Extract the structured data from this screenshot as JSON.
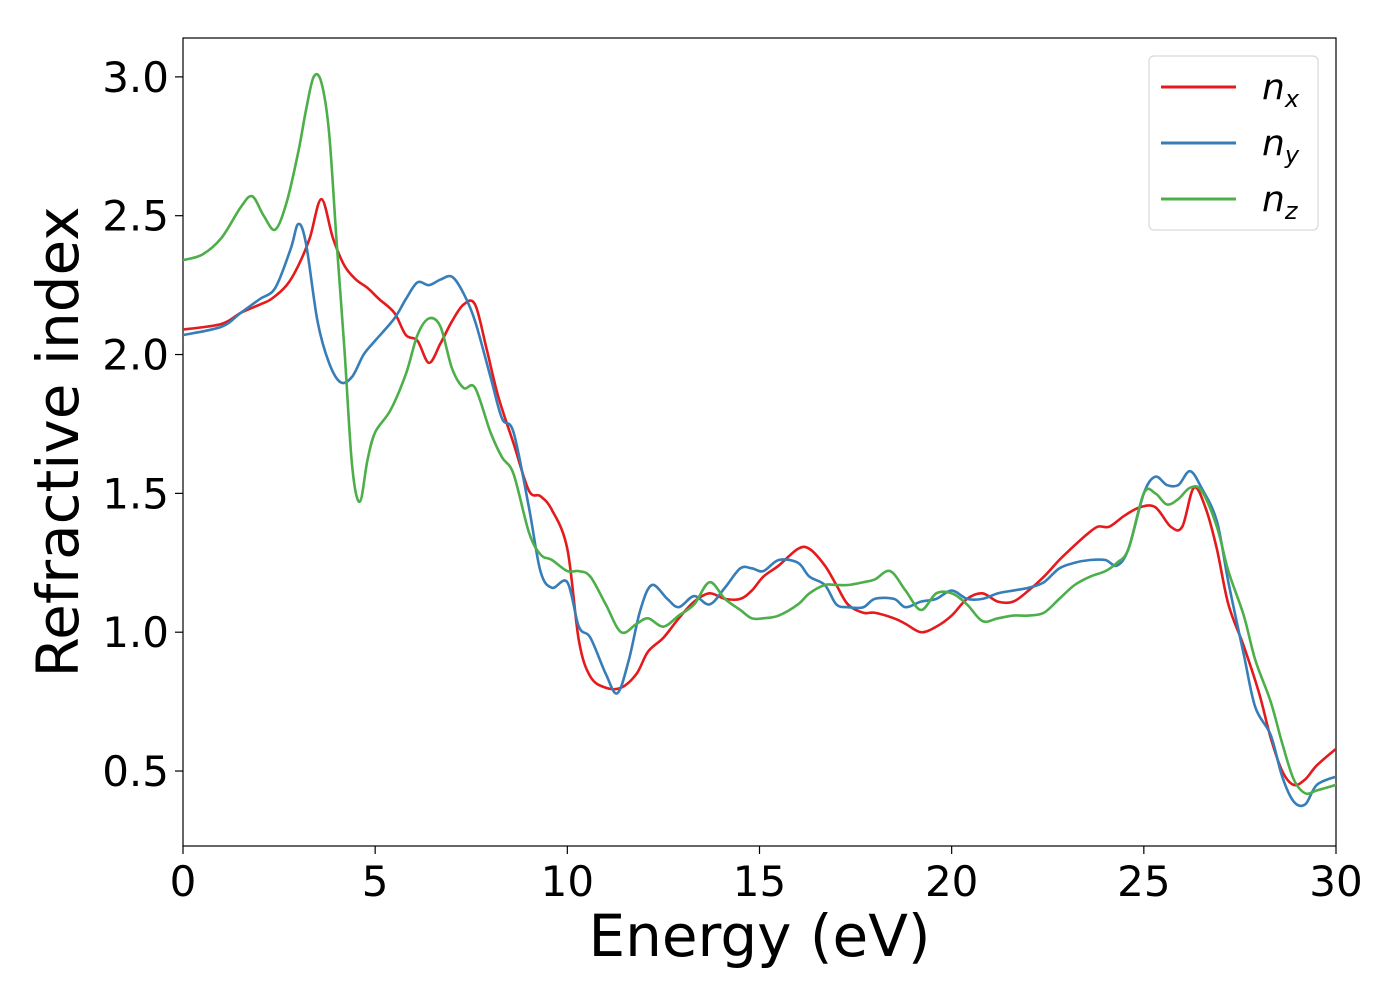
{
  "chart_data": {
    "type": "line",
    "xlabel": "Energy (eV)",
    "ylabel": "Refractive index",
    "xlim": [
      0,
      30
    ],
    "ylim": [
      0.23,
      3.14
    ],
    "xticks": [
      0,
      5,
      10,
      15,
      20,
      25,
      30
    ],
    "yticks": [
      0.5,
      1.0,
      1.5,
      2.0,
      2.5,
      3.0
    ],
    "grid": false,
    "legend_position": "top-right",
    "series": [
      {
        "name": "n",
        "subscript": "x",
        "color": "#e41a1c",
        "x": [
          0,
          1,
          1.5,
          2,
          2.3,
          2.7,
          3.0,
          3.3,
          3.6,
          3.9,
          4.2,
          4.5,
          4.8,
          5.1,
          5.5,
          5.8,
          6.1,
          6.4,
          6.7,
          7.0,
          7.3,
          7.6,
          7.9,
          8.2,
          8.6,
          9.0,
          9.3,
          9.6,
          10.0,
          10.3,
          10.6,
          11.0,
          11.4,
          11.8,
          12.1,
          12.5,
          12.9,
          13.3,
          13.7,
          14.1,
          14.5,
          14.8,
          15.1,
          15.5,
          16.0,
          16.3,
          16.7,
          17.0,
          17.3,
          17.7,
          18.0,
          18.5,
          18.8,
          19.2,
          19.6,
          20.0,
          20.4,
          20.8,
          21.2,
          21.6,
          22.0,
          22.4,
          22.8,
          23.1,
          23.5,
          23.8,
          24.1,
          24.5,
          24.9,
          25.3,
          25.7,
          26.0,
          26.3,
          26.6,
          26.9,
          27.2,
          27.6,
          28.0,
          28.3,
          28.6,
          28.9,
          29.2,
          29.5,
          30.0
        ],
        "y": [
          2.09,
          2.11,
          2.15,
          2.18,
          2.2,
          2.25,
          2.32,
          2.42,
          2.56,
          2.42,
          2.32,
          2.27,
          2.24,
          2.2,
          2.15,
          2.07,
          2.05,
          1.97,
          2.04,
          2.12,
          2.18,
          2.18,
          2.02,
          1.85,
          1.68,
          1.51,
          1.49,
          1.44,
          1.3,
          0.97,
          0.84,
          0.8,
          0.8,
          0.85,
          0.93,
          0.98,
          1.05,
          1.11,
          1.14,
          1.12,
          1.12,
          1.15,
          1.2,
          1.24,
          1.3,
          1.3,
          1.24,
          1.17,
          1.1,
          1.07,
          1.07,
          1.05,
          1.03,
          1.0,
          1.02,
          1.06,
          1.12,
          1.14,
          1.11,
          1.11,
          1.15,
          1.2,
          1.26,
          1.3,
          1.35,
          1.38,
          1.38,
          1.42,
          1.45,
          1.45,
          1.38,
          1.38,
          1.52,
          1.45,
          1.3,
          1.1,
          0.95,
          0.78,
          0.62,
          0.5,
          0.45,
          0.47,
          0.52,
          0.58
        ]
      },
      {
        "name": "n",
        "subscript": "y",
        "color": "#377eb8",
        "x": [
          0,
          1,
          1.5,
          2,
          2.4,
          2.8,
          3.0,
          3.2,
          3.5,
          3.8,
          4.1,
          4.4,
          4.7,
          5.0,
          5.5,
          5.8,
          6.1,
          6.4,
          6.7,
          7.0,
          7.3,
          7.6,
          8.0,
          8.3,
          8.6,
          9.0,
          9.3,
          9.6,
          10.0,
          10.3,
          10.6,
          11.0,
          11.3,
          11.6,
          11.9,
          12.2,
          12.6,
          12.9,
          13.3,
          13.7,
          14.1,
          14.5,
          14.8,
          15.1,
          15.5,
          16.0,
          16.3,
          16.7,
          17.0,
          17.3,
          17.7,
          18.0,
          18.5,
          18.8,
          19.2,
          19.6,
          20.0,
          20.4,
          20.8,
          21.2,
          21.6,
          22.0,
          22.4,
          22.8,
          23.2,
          23.6,
          24.0,
          24.3,
          24.6,
          25.0,
          25.3,
          25.6,
          25.9,
          26.2,
          26.5,
          26.9,
          27.2,
          27.6,
          27.9,
          28.3,
          28.6,
          28.9,
          29.2,
          29.5,
          30.0
        ],
        "y": [
          2.07,
          2.1,
          2.15,
          2.2,
          2.24,
          2.38,
          2.47,
          2.4,
          2.12,
          1.97,
          1.9,
          1.92,
          2.0,
          2.05,
          2.13,
          2.2,
          2.26,
          2.25,
          2.27,
          2.28,
          2.22,
          2.12,
          1.92,
          1.77,
          1.72,
          1.45,
          1.22,
          1.16,
          1.18,
          1.02,
          0.98,
          0.85,
          0.78,
          0.9,
          1.08,
          1.17,
          1.12,
          1.09,
          1.13,
          1.1,
          1.16,
          1.23,
          1.23,
          1.22,
          1.26,
          1.25,
          1.2,
          1.17,
          1.1,
          1.09,
          1.09,
          1.12,
          1.12,
          1.09,
          1.11,
          1.12,
          1.15,
          1.12,
          1.12,
          1.14,
          1.15,
          1.16,
          1.18,
          1.23,
          1.25,
          1.26,
          1.26,
          1.24,
          1.3,
          1.5,
          1.56,
          1.53,
          1.53,
          1.58,
          1.52,
          1.4,
          1.18,
          0.92,
          0.73,
          0.63,
          0.48,
          0.39,
          0.38,
          0.45,
          0.48
        ]
      },
      {
        "name": "n",
        "subscript": "z",
        "color": "#4daf4a",
        "x": [
          0,
          0.5,
          1.0,
          1.5,
          1.8,
          2.1,
          2.4,
          2.7,
          3.0,
          3.2,
          3.4,
          3.6,
          3.8,
          4.0,
          4.2,
          4.4,
          4.6,
          4.8,
          5.0,
          5.4,
          5.8,
          6.1,
          6.4,
          6.7,
          7.0,
          7.3,
          7.6,
          8.0,
          8.3,
          8.6,
          9.0,
          9.3,
          9.6,
          10.0,
          10.3,
          10.6,
          11.0,
          11.4,
          11.8,
          12.1,
          12.5,
          12.9,
          13.3,
          13.7,
          14.1,
          14.5,
          14.8,
          15.1,
          15.5,
          16.0,
          16.3,
          16.7,
          17.0,
          17.3,
          17.7,
          18.0,
          18.4,
          18.8,
          19.2,
          19.6,
          20.0,
          20.4,
          20.8,
          21.2,
          21.6,
          22.0,
          22.4,
          22.8,
          23.2,
          23.6,
          24.0,
          24.3,
          24.6,
          25.0,
          25.3,
          25.6,
          25.9,
          26.2,
          26.5,
          26.9,
          27.2,
          27.6,
          27.9,
          28.3,
          28.6,
          28.9,
          29.2,
          29.5,
          30.0
        ],
        "y": [
          2.34,
          2.36,
          2.42,
          2.53,
          2.57,
          2.5,
          2.45,
          2.55,
          2.73,
          2.88,
          3.0,
          2.98,
          2.8,
          2.4,
          2.02,
          1.6,
          1.47,
          1.62,
          1.72,
          1.8,
          1.93,
          2.07,
          2.13,
          2.1,
          1.95,
          1.88,
          1.88,
          1.72,
          1.63,
          1.57,
          1.36,
          1.28,
          1.26,
          1.22,
          1.22,
          1.2,
          1.1,
          1.0,
          1.03,
          1.05,
          1.02,
          1.06,
          1.1,
          1.18,
          1.12,
          1.08,
          1.05,
          1.05,
          1.06,
          1.1,
          1.14,
          1.17,
          1.17,
          1.17,
          1.18,
          1.19,
          1.22,
          1.15,
          1.08,
          1.14,
          1.14,
          1.1,
          1.04,
          1.05,
          1.06,
          1.06,
          1.07,
          1.12,
          1.17,
          1.2,
          1.22,
          1.25,
          1.3,
          1.5,
          1.5,
          1.46,
          1.48,
          1.52,
          1.51,
          1.38,
          1.22,
          1.06,
          0.9,
          0.75,
          0.6,
          0.47,
          0.42,
          0.43,
          0.45
        ]
      }
    ]
  }
}
